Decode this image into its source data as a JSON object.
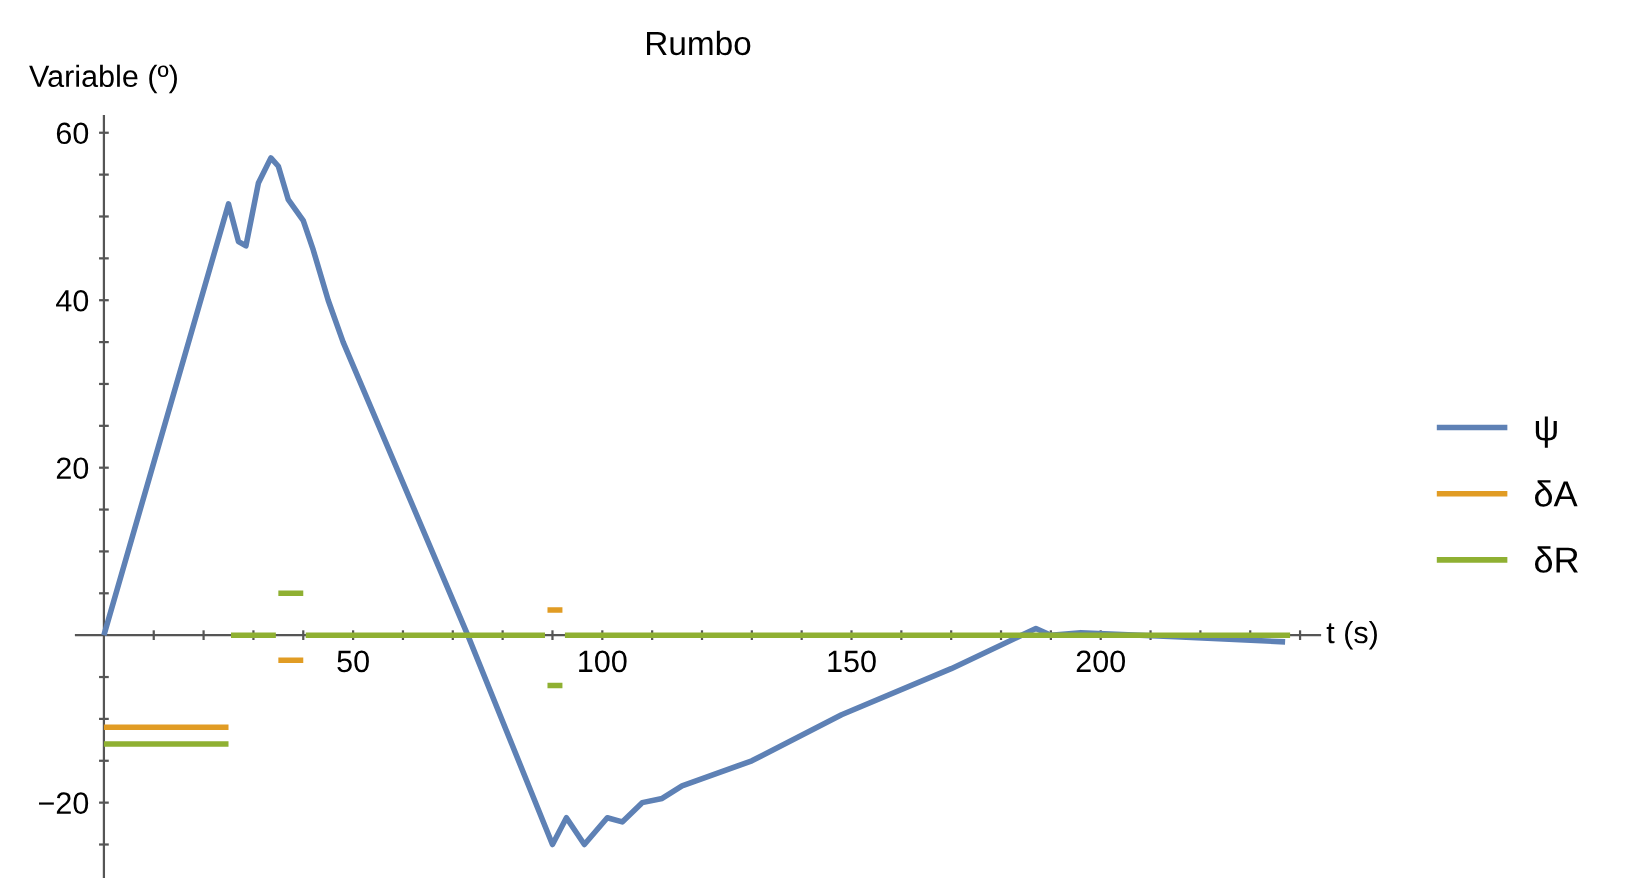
{
  "chart_data": {
    "type": "line",
    "title": "Rumbo",
    "xlabel": "t (s)",
    "ylabel": "Variable (º)",
    "xlim": [
      -5.6,
      244
    ],
    "ylim": [
      -29,
      62
    ],
    "xticks": [
      {
        "value": 10,
        "label": null
      },
      {
        "value": 20,
        "label": null
      },
      {
        "value": 30,
        "label": null
      },
      {
        "value": 40,
        "label": null
      },
      50,
      {
        "value": 60,
        "label": null
      },
      {
        "value": 70,
        "label": null
      },
      {
        "value": 80,
        "label": null
      },
      {
        "value": 90,
        "label": null
      },
      100,
      {
        "value": 110,
        "label": null
      },
      {
        "value": 120,
        "label": null
      },
      {
        "value": 130,
        "label": null
      },
      {
        "value": 140,
        "label": null
      },
      150,
      {
        "value": 160,
        "label": null
      },
      {
        "value": 170,
        "label": null
      },
      {
        "value": 180,
        "label": null
      },
      {
        "value": 190,
        "label": null
      },
      200,
      {
        "value": 210,
        "label": null
      },
      {
        "value": 220,
        "label": null
      },
      {
        "value": 230,
        "label": null
      },
      {
        "value": 240,
        "label": null
      }
    ],
    "yticks": [
      {
        "value": -25,
        "label": null
      },
      -20,
      {
        "value": -15,
        "label": null
      },
      {
        "value": -10,
        "label": null
      },
      {
        "value": -5,
        "label": null
      },
      {
        "value": 5,
        "label": null
      },
      {
        "value": 10,
        "label": null
      },
      {
        "value": 15,
        "label": null
      },
      20,
      {
        "value": 25,
        "label": null
      },
      {
        "value": 30,
        "label": null
      },
      {
        "value": 35,
        "label": null
      },
      40,
      {
        "value": 45,
        "label": null
      },
      {
        "value": 50,
        "label": null
      },
      {
        "value": 55,
        "label": null
      },
      60
    ],
    "grid": false,
    "legend": "right",
    "line_style": "solid",
    "marker": "none",
    "series": [
      {
        "name": "ψ",
        "color": "#5e81b5",
        "x": [
          0,
          25,
          27,
          28.5,
          31,
          33.5,
          35,
          37,
          40,
          42,
          45,
          48,
          73,
          90,
          92.8,
          96.4,
          101,
          104,
          108,
          112,
          116,
          130,
          148,
          170,
          187,
          190,
          196,
          215,
          237
        ],
        "values": [
          0,
          51.5,
          47,
          46.5,
          54,
          57,
          56,
          52,
          49.5,
          46,
          40,
          35,
          0,
          -25,
          -21.8,
          -25,
          -21.8,
          -22.3,
          -20,
          -19.5,
          -18,
          -15,
          -9.5,
          -4,
          0.8,
          0,
          0.3,
          -0.2,
          -0.8
        ]
      },
      {
        "name": "δA",
        "color": "#e19c24",
        "x": [
          0,
          25,
          null,
          35,
          40,
          null,
          89,
          92
        ],
        "values": [
          -11,
          -11,
          null,
          -3,
          -3,
          null,
          3,
          3
        ]
      },
      {
        "name": "δR",
        "color": "#8fb032",
        "x": [
          0,
          25,
          null,
          25.5,
          34.5,
          null,
          35,
          40,
          null,
          40.5,
          88.5,
          null,
          89,
          92,
          null,
          92.5,
          238
        ],
        "values": [
          -13,
          -13,
          null,
          0,
          0,
          null,
          5,
          5,
          null,
          0,
          0,
          null,
          -6,
          -6,
          null,
          0,
          0
        ]
      }
    ]
  }
}
